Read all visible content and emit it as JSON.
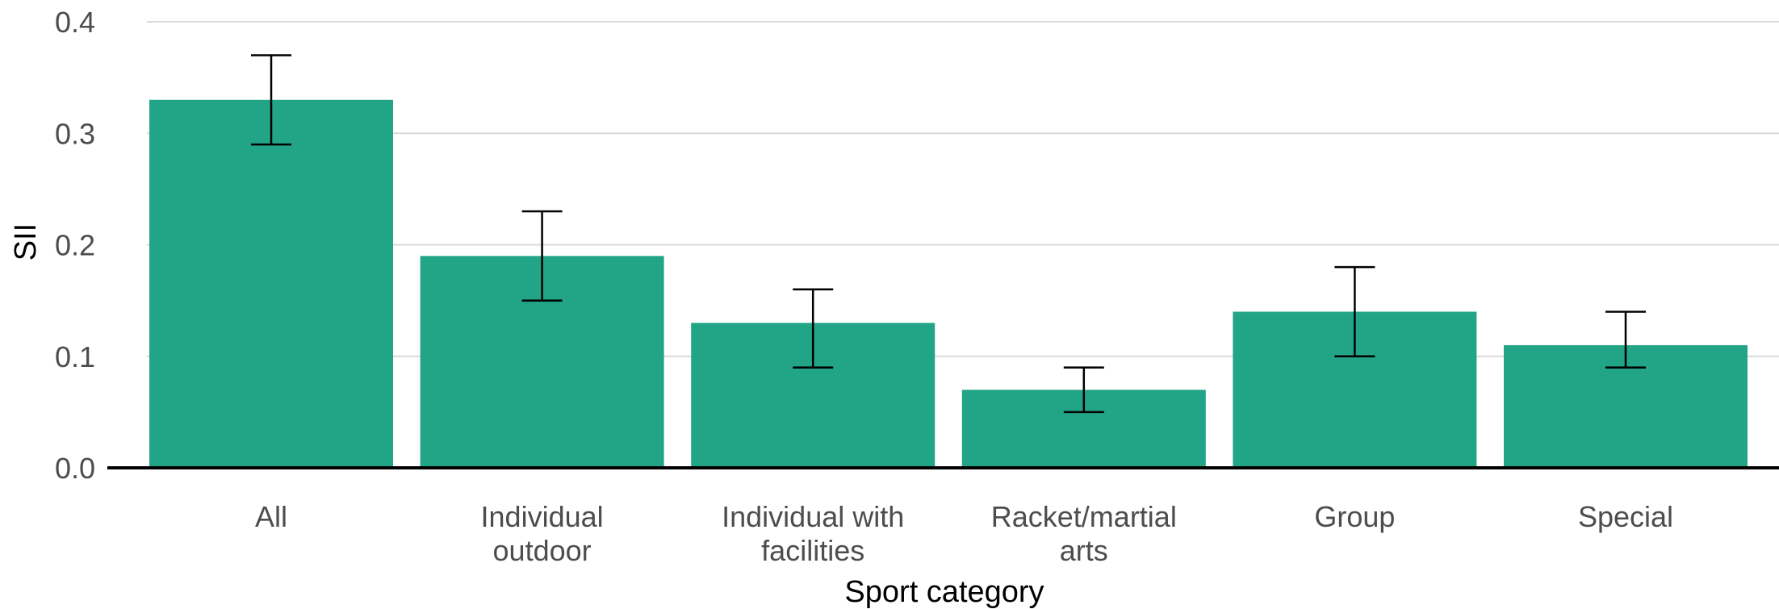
{
  "chart_data": {
    "type": "bar",
    "categories": [
      [
        "All"
      ],
      [
        "Individual",
        "outdoor"
      ],
      [
        "Individual with",
        "facilities"
      ],
      [
        "Racket/martial",
        "arts"
      ],
      [
        "Group"
      ],
      [
        "Special"
      ]
    ],
    "values": [
      0.33,
      0.19,
      0.13,
      0.07,
      0.14,
      0.11
    ],
    "error_low": [
      0.29,
      0.15,
      0.09,
      0.05,
      0.1,
      0.09
    ],
    "error_high": [
      0.37,
      0.23,
      0.16,
      0.09,
      0.18,
      0.14
    ],
    "xlabel": "Sport category",
    "ylabel": "SII",
    "ylim": [
      0,
      0.4
    ],
    "yticks": [
      "0.0",
      "0.1",
      "0.2",
      "0.3",
      "0.4"
    ],
    "bar_color": "#22a487",
    "grid": true
  }
}
